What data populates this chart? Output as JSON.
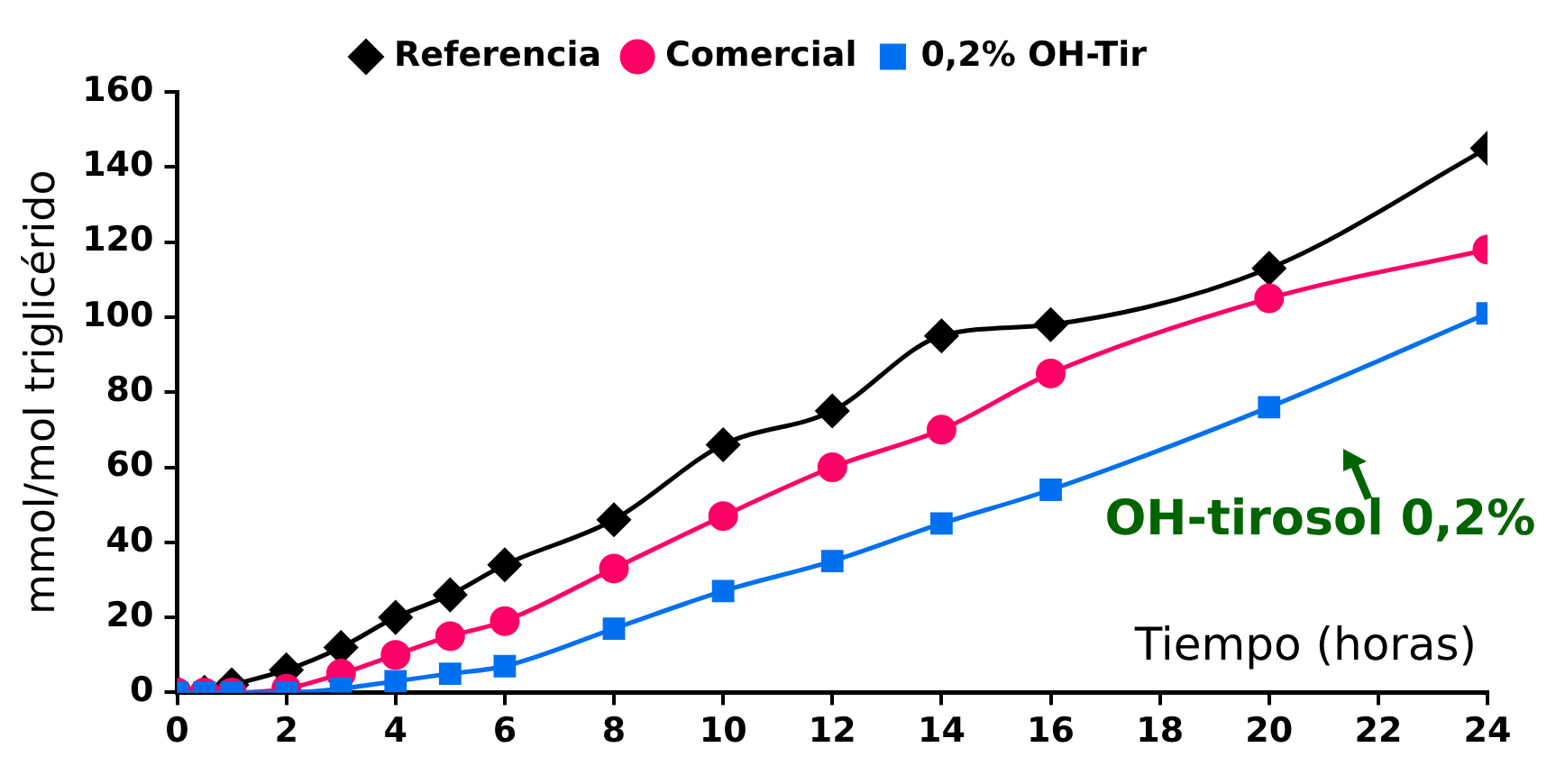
{
  "chart_data": {
    "type": "line",
    "xlabel": "Tiempo (horas)",
    "ylabel": "mmol/mol triglicérido",
    "x": [
      0,
      0.5,
      1,
      2,
      3,
      4,
      5,
      6,
      8,
      10,
      12,
      14,
      16,
      20,
      24
    ],
    "series": [
      {
        "name": "Referencia",
        "color": "#000000",
        "marker": "diamond",
        "values": [
          0,
          0,
          2,
          6,
          12,
          20,
          26,
          34,
          46,
          66,
          75,
          95,
          98,
          113,
          145
        ]
      },
      {
        "name": "Comercial",
        "color": "#ff0066",
        "marker": "circle",
        "values": [
          0,
          0,
          0,
          1,
          5,
          10,
          15,
          19,
          33,
          47,
          60,
          70,
          85,
          105,
          118
        ]
      },
      {
        "name": "0,2% OH-Tir",
        "color": "#0070f0",
        "marker": "square",
        "values": [
          0,
          0,
          0,
          0,
          1,
          3,
          5,
          7,
          17,
          27,
          35,
          45,
          54,
          76,
          101
        ]
      }
    ],
    "xlim": [
      0,
      24
    ],
    "xticks": [
      0,
      2,
      4,
      6,
      8,
      10,
      12,
      14,
      16,
      18,
      20,
      22,
      24
    ],
    "ylim": [
      0,
      160
    ],
    "yticks": [
      0,
      20,
      40,
      60,
      80,
      100,
      120,
      140,
      160
    ],
    "grid": false,
    "legend": "top",
    "line_style": "solid",
    "annotations": [
      {
        "text": "OH-tirosol 0,2%",
        "x": 21,
        "y": 80
      }
    ]
  }
}
